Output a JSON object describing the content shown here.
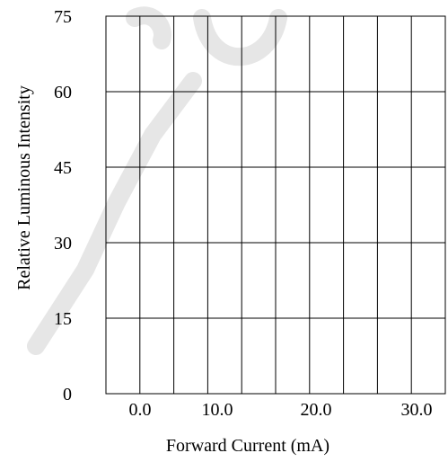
{
  "chart_data": {
    "type": "line",
    "title": "",
    "xlabel": "Forward Current (mA)",
    "ylabel": "Relative Luminous Intensity",
    "x_ticks": [
      "0.0",
      "10.0",
      "20.0",
      "30.0"
    ],
    "y_ticks": [
      "0",
      "15",
      "30",
      "45",
      "60",
      "75"
    ],
    "xlim": [
      0,
      30
    ],
    "ylim": [
      0,
      75
    ],
    "x_gridlines": 10,
    "y_gridlines": 5,
    "grid": true,
    "series": []
  },
  "watermark": {
    "colors": {
      "stroke": "#e0e0e0"
    }
  }
}
